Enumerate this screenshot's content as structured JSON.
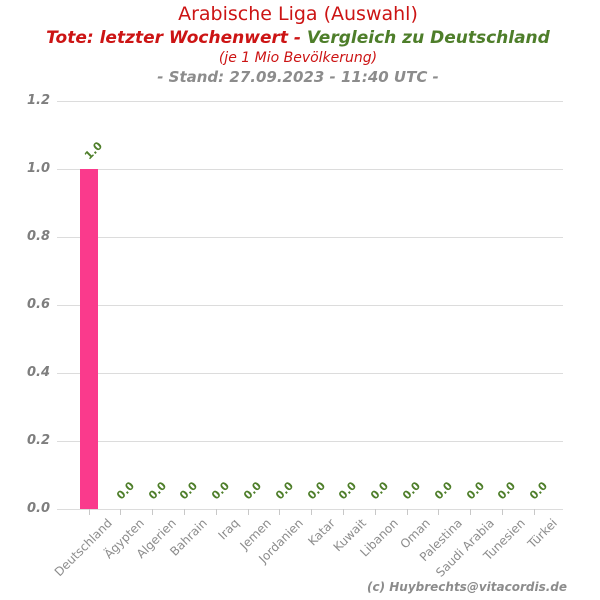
{
  "header": {
    "title": "Arabische Liga (Auswahl)",
    "subtitle_red": "Tote: letzter Wochenwert - ",
    "subtitle_green": "Vergleich zu Deutschland",
    "unit_line": "(je 1 Mio Bevölkerung)",
    "stand_line": "- Stand: 27.09.2023 - 11:40 UTC -"
  },
  "footer": {
    "copyright": "(c) Huybrechts@vitacordis.de"
  },
  "colors": {
    "red": "#CC1414",
    "green": "#4E7E2A",
    "bar": "#FA3A8C",
    "label_gray": "#8C8C8C",
    "grid": "#DCDCDC",
    "tick": "#C8C8C8"
  },
  "chart_data": {
    "type": "bar",
    "title": "Arabische Liga (Auswahl)",
    "subtitle": "Tote: letzter Wochenwert - Vergleich zu Deutschland (je 1 Mio Bevölkerung) - Stand: 27.09.2023 - 11:40 UTC -",
    "categories": [
      "Deutschland",
      "Ägypten",
      "Algerien",
      "Bahrain",
      "Iraq",
      "Jemen",
      "Jordanien",
      "Katar",
      "Kuwait",
      "Libanon",
      "Oman",
      "Palestina",
      "Saudi Arabia",
      "Tunesien",
      "Türkei"
    ],
    "values": [
      1.0,
      0.0,
      0.0,
      0.0,
      0.0,
      0.0,
      0.0,
      0.0,
      0.0,
      0.0,
      0.0,
      0.0,
      0.0,
      0.0,
      0.0
    ],
    "value_labels": [
      "1.0",
      "0.0",
      "0.0",
      "0.0",
      "0.0",
      "0.0",
      "0.0",
      "0.0",
      "0.0",
      "0.0",
      "0.0",
      "0.0",
      "0.0",
      "0.0",
      "0.0"
    ],
    "xlabel": "",
    "ylabel": "",
    "ylim": [
      0,
      1.2
    ],
    "yticks": [
      "0.0",
      "0.2",
      "0.4",
      "0.6",
      "0.8",
      "1.0",
      "1.2"
    ],
    "grid": true,
    "legend": false,
    "bar_color": "#FA3A8C",
    "value_label_color": "#4E7E2A"
  }
}
